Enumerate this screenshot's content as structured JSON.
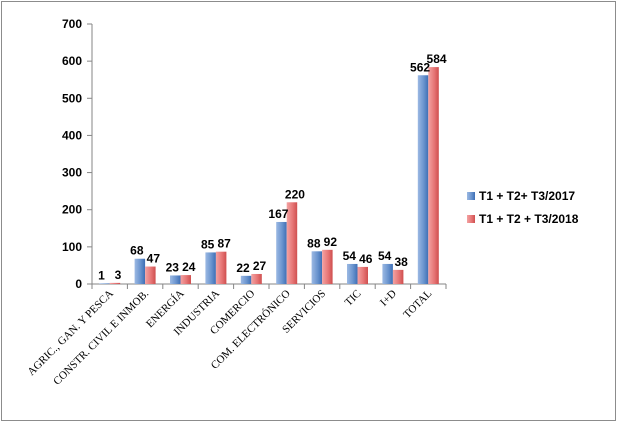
{
  "chart_data": {
    "type": "bar",
    "title": "",
    "xlabel": "",
    "ylabel": "",
    "ylim": [
      0,
      700
    ],
    "yticks": [
      0,
      100,
      200,
      300,
      400,
      500,
      600,
      700
    ],
    "grid": false,
    "legend_position": "right",
    "categories": [
      "AGRIC., GAN. Y PESCA",
      "CONSTR. CIVIL E INMOB.",
      "ENERGÍA",
      "INDUSTRIA",
      "COMERCIO",
      "COM. ELECTRÓNICO",
      "SERVICIOS",
      "TIC",
      "I+D",
      "TOTAL"
    ],
    "series": [
      {
        "name": "T1 + T2+ T3/2017",
        "color": "#4f81bd",
        "values": [
          1,
          68,
          23,
          85,
          22,
          167,
          88,
          54,
          54,
          562
        ]
      },
      {
        "name": "T1 + T2 + T3/2018",
        "color": "#e46c6c",
        "values": [
          3,
          47,
          24,
          87,
          27,
          220,
          92,
          46,
          38,
          584
        ]
      }
    ]
  }
}
